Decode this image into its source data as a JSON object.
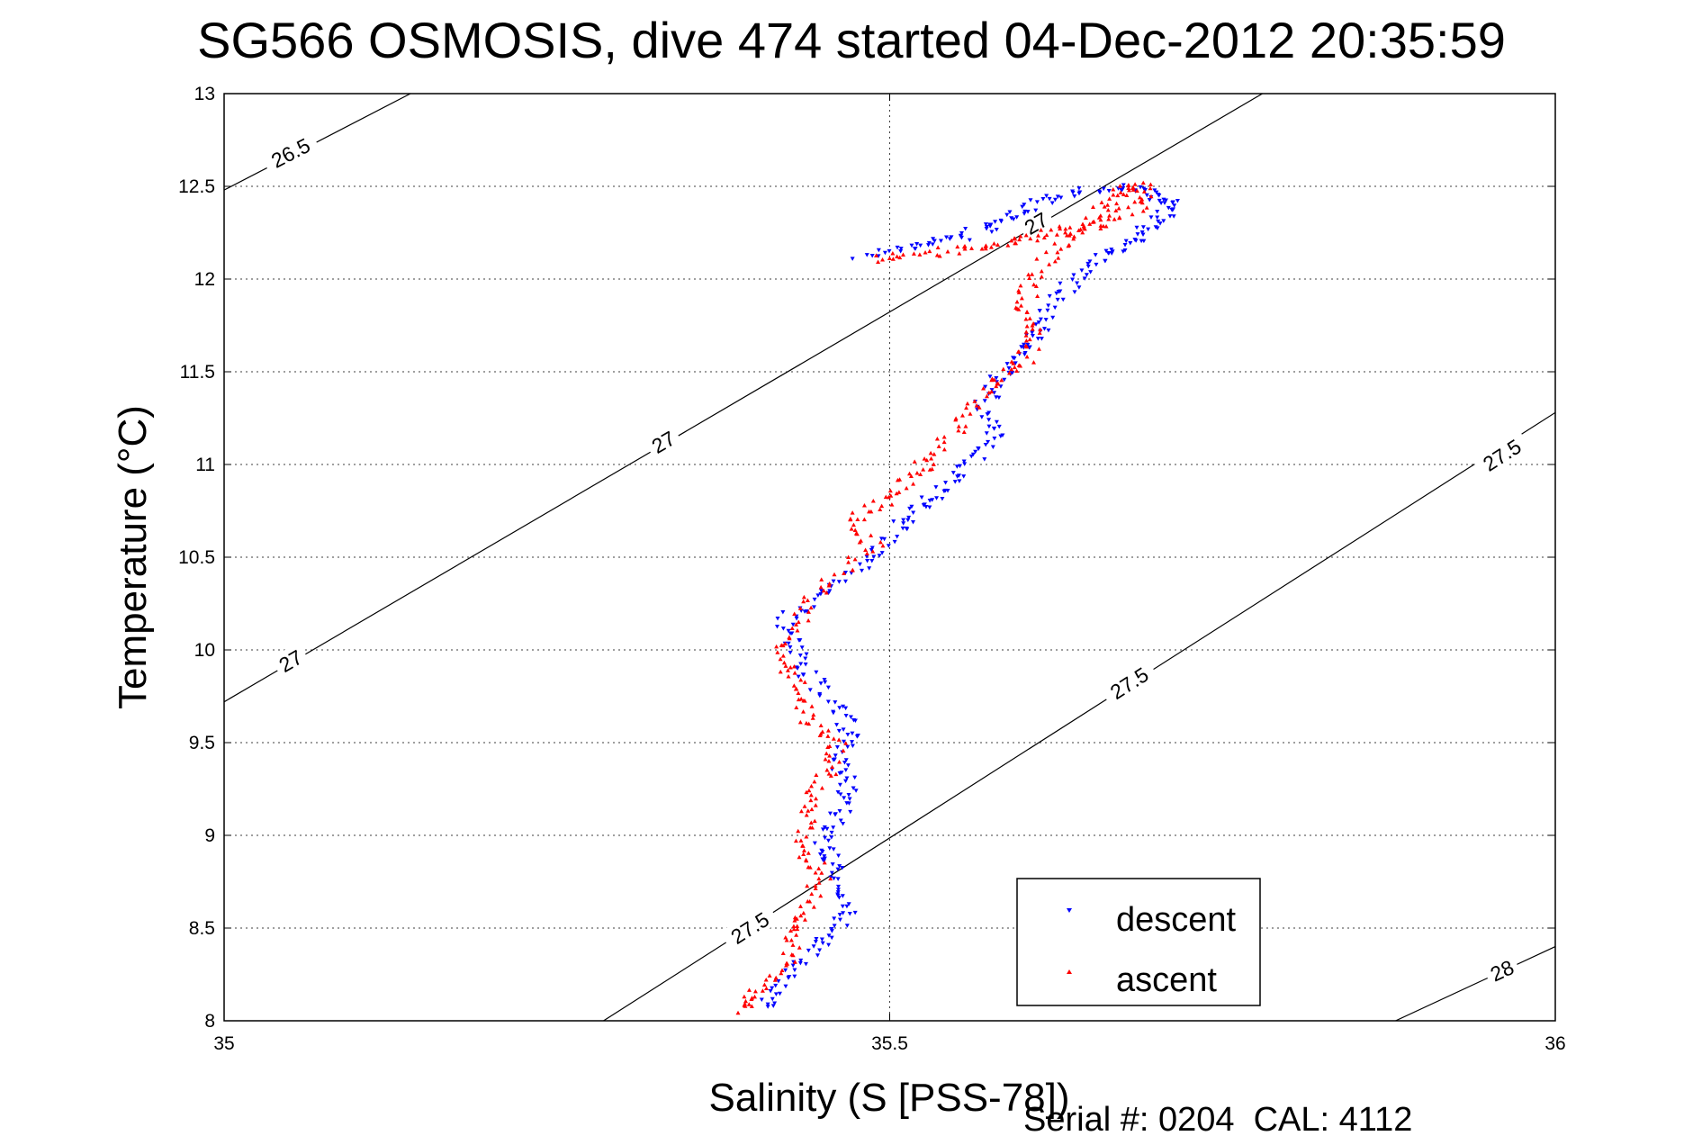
{
  "chart_data": {
    "type": "scatter",
    "title": "SG566 OSMOSIS, dive 474 started 04-Dec-2012 20:35:59",
    "xlabel": "Salinity (S [PSS-78])",
    "ylabel": "Temperature (°C)",
    "xlim": [
      35,
      36
    ],
    "ylim": [
      8,
      13
    ],
    "x_ticks": [
      35,
      35.5,
      36
    ],
    "x_tick_labels": [
      "35",
      "35.5",
      "36"
    ],
    "y_ticks": [
      8,
      8.5,
      9,
      9.5,
      10,
      10.5,
      11,
      11.5,
      12,
      12.5,
      13
    ],
    "y_tick_labels": [
      "8",
      "8.5",
      "9",
      "9.5",
      "10",
      "10.5",
      "11",
      "11.5",
      "12",
      "12.5",
      "13"
    ],
    "grid": true,
    "legend_position": "bottom-right",
    "footer": "Serial #: 0204  CAL: 4112",
    "contours": [
      {
        "label": "26.5",
        "points": [
          [
            35,
            12.48
          ],
          [
            35.14,
            13
          ]
        ],
        "label_positions": [
          [
            35.05,
            12.68
          ]
        ]
      },
      {
        "label": "27",
        "points": [
          [
            35,
            9.72
          ],
          [
            35.78,
            13
          ]
        ],
        "label_positions": [
          [
            35.05,
            9.94
          ],
          [
            35.33,
            11.12
          ],
          [
            35.61,
            12.3
          ]
        ]
      },
      {
        "label": "27.5",
        "points": [
          [
            35.285,
            8
          ],
          [
            36,
            11.28
          ]
        ],
        "label_positions": [
          [
            35.395,
            8.5
          ],
          [
            35.68,
            9.82
          ],
          [
            35.96,
            11.05
          ]
        ]
      },
      {
        "label": "28",
        "points": [
          [
            35.88,
            8
          ],
          [
            36,
            8.4
          ]
        ],
        "label_positions": [
          [
            35.96,
            8.27
          ]
        ]
      }
    ],
    "series": [
      {
        "name": "descent",
        "color": "#0000ff",
        "marker": "triangle-down",
        "anchors": [
          [
            35.48,
            12.11
          ],
          [
            35.52,
            12.18
          ],
          [
            35.55,
            12.22
          ],
          [
            35.58,
            12.3
          ],
          [
            35.6,
            12.38
          ],
          [
            35.63,
            12.45
          ],
          [
            35.67,
            12.5
          ],
          [
            35.7,
            12.46
          ],
          [
            35.71,
            12.4
          ],
          [
            35.7,
            12.3
          ],
          [
            35.68,
            12.2
          ],
          [
            35.66,
            12.12
          ],
          [
            35.64,
            12.0
          ],
          [
            35.62,
            11.85
          ],
          [
            35.61,
            11.7
          ],
          [
            35.6,
            11.6
          ],
          [
            35.58,
            11.45
          ],
          [
            35.57,
            11.3
          ],
          [
            35.58,
            11.15
          ],
          [
            35.56,
            11.0
          ],
          [
            35.54,
            10.85
          ],
          [
            35.52,
            10.75
          ],
          [
            35.5,
            10.62
          ],
          [
            35.48,
            10.45
          ],
          [
            35.45,
            10.3
          ],
          [
            35.42,
            10.15
          ],
          [
            35.43,
            10.0
          ],
          [
            35.44,
            9.85
          ],
          [
            35.46,
            9.7
          ],
          [
            35.47,
            9.55
          ],
          [
            35.46,
            9.4
          ],
          [
            35.47,
            9.25
          ],
          [
            35.46,
            9.1
          ],
          [
            35.45,
            8.95
          ],
          [
            35.46,
            8.82
          ],
          [
            35.47,
            8.65
          ],
          [
            35.46,
            8.5
          ],
          [
            35.44,
            8.35
          ],
          [
            35.42,
            8.2
          ],
          [
            35.4,
            8.06
          ]
        ]
      },
      {
        "name": "ascent",
        "color": "#ff0000",
        "marker": "triangle-up",
        "anchors": [
          [
            35.49,
            12.11
          ],
          [
            35.53,
            12.14
          ],
          [
            35.57,
            12.17
          ],
          [
            35.6,
            12.22
          ],
          [
            35.63,
            12.26
          ],
          [
            35.66,
            12.3
          ],
          [
            35.69,
            12.4
          ],
          [
            35.69,
            12.52
          ],
          [
            35.67,
            12.45
          ],
          [
            35.65,
            12.32
          ],
          [
            35.63,
            12.2
          ],
          [
            35.61,
            12.02
          ],
          [
            35.6,
            11.85
          ],
          [
            35.61,
            11.72
          ],
          [
            35.6,
            11.55
          ],
          [
            35.58,
            11.45
          ],
          [
            35.56,
            11.3
          ],
          [
            35.54,
            11.1
          ],
          [
            35.52,
            10.95
          ],
          [
            35.5,
            10.82
          ],
          [
            35.47,
            10.7
          ],
          [
            35.49,
            10.55
          ],
          [
            35.45,
            10.35
          ],
          [
            35.43,
            10.15
          ],
          [
            35.42,
            9.95
          ],
          [
            35.43,
            9.8
          ],
          [
            35.44,
            9.62
          ],
          [
            35.46,
            9.48
          ],
          [
            35.45,
            9.32
          ],
          [
            35.44,
            9.15
          ],
          [
            35.43,
            8.95
          ],
          [
            35.45,
            8.8
          ],
          [
            35.44,
            8.62
          ],
          [
            35.43,
            8.48
          ],
          [
            35.42,
            8.3
          ],
          [
            35.4,
            8.15
          ],
          [
            35.39,
            8.05
          ]
        ]
      }
    ]
  }
}
